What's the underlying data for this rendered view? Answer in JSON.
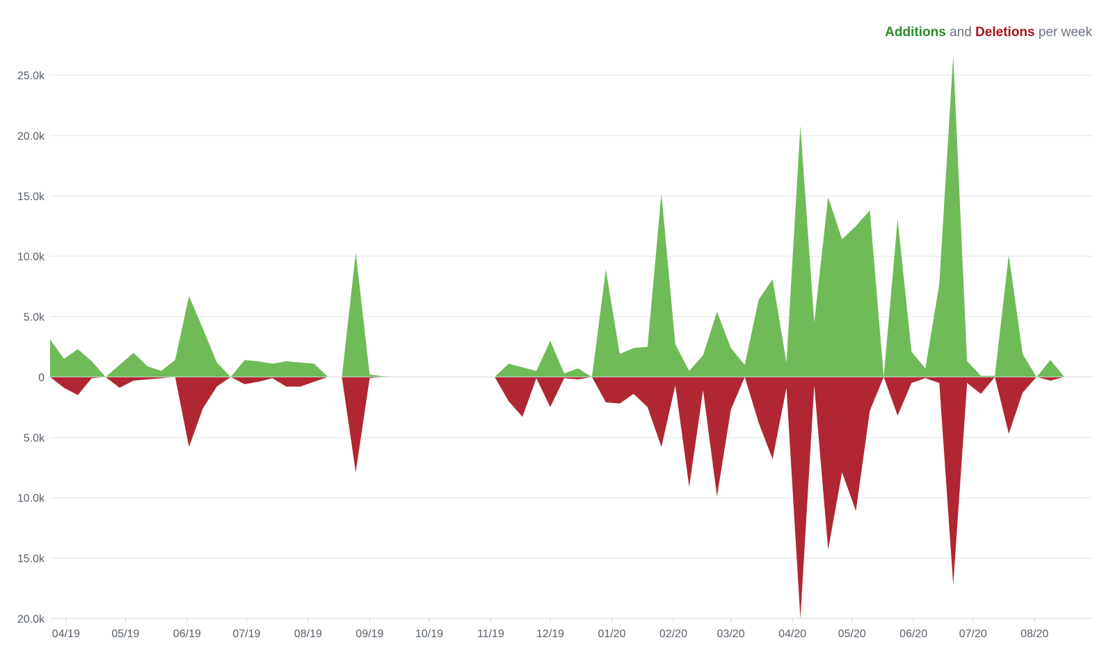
{
  "legend": {
    "additions": "Additions",
    "and": "and",
    "deletions": "Deletions",
    "suffix": "per week"
  },
  "chart_data": {
    "type": "area",
    "title": "Additions and Deletions per week",
    "colors": {
      "additions": "#6fbb57",
      "deletions": "#b02632",
      "grid": "#e1e4e8",
      "axis": "#586069"
    },
    "ylim": [
      -20000,
      26500
    ],
    "y_ticks": [
      {
        "value": 25000,
        "label": "25.0k"
      },
      {
        "value": 20000,
        "label": "20.0k"
      },
      {
        "value": 15000,
        "label": "15.0k"
      },
      {
        "value": 10000,
        "label": "10.0k"
      },
      {
        "value": 5000,
        "label": "5.0k"
      },
      {
        "value": 0,
        "label": "0"
      },
      {
        "value": -5000,
        "label": "5.0k"
      },
      {
        "value": -10000,
        "label": "10.0k"
      },
      {
        "value": -15000,
        "label": "15.0k"
      },
      {
        "value": -20000,
        "label": "20.0k"
      }
    ],
    "x_range": [
      "2019-03-24",
      "2020-08-30"
    ],
    "x_ticks": [
      {
        "date": "2019-04-01",
        "label": "04/19"
      },
      {
        "date": "2019-05-01",
        "label": "05/19"
      },
      {
        "date": "2019-06-01",
        "label": "06/19"
      },
      {
        "date": "2019-07-01",
        "label": "07/19"
      },
      {
        "date": "2019-08-01",
        "label": "08/19"
      },
      {
        "date": "2019-09-01",
        "label": "09/19"
      },
      {
        "date": "2019-10-01",
        "label": "10/19"
      },
      {
        "date": "2019-11-01",
        "label": "11/19"
      },
      {
        "date": "2019-12-01",
        "label": "12/19"
      },
      {
        "date": "2020-01-01",
        "label": "01/20"
      },
      {
        "date": "2020-02-01",
        "label": "02/20"
      },
      {
        "date": "2020-03-01",
        "label": "03/20"
      },
      {
        "date": "2020-04-01",
        "label": "04/20"
      },
      {
        "date": "2020-05-01",
        "label": "05/20"
      },
      {
        "date": "2020-06-01",
        "label": "06/20"
      },
      {
        "date": "2020-07-01",
        "label": "07/20"
      },
      {
        "date": "2020-08-01",
        "label": "08/20"
      }
    ],
    "series": [
      {
        "name": "Additions",
        "points": [
          [
            "2019-03-24",
            3100
          ],
          [
            "2019-03-31",
            1500
          ],
          [
            "2019-04-07",
            2300
          ],
          [
            "2019-04-14",
            1300
          ],
          [
            "2019-04-21",
            0
          ],
          [
            "2019-04-28",
            1000
          ],
          [
            "2019-05-05",
            2000
          ],
          [
            "2019-05-12",
            900
          ],
          [
            "2019-05-19",
            500
          ],
          [
            "2019-05-26",
            1400
          ],
          [
            "2019-06-02",
            6700
          ],
          [
            "2019-06-09",
            4000
          ],
          [
            "2019-06-16",
            1200
          ],
          [
            "2019-06-23",
            0
          ],
          [
            "2019-06-30",
            1400
          ],
          [
            "2019-07-07",
            1300
          ],
          [
            "2019-07-14",
            1100
          ],
          [
            "2019-07-21",
            1300
          ],
          [
            "2019-07-28",
            1200
          ],
          [
            "2019-08-04",
            1100
          ],
          [
            "2019-08-11",
            0
          ],
          [
            "2019-08-18",
            0
          ],
          [
            "2019-08-25",
            10300
          ],
          [
            "2019-09-01",
            200
          ],
          [
            "2019-09-08",
            50
          ],
          [
            "2019-09-15",
            0
          ],
          [
            "2019-09-22",
            0
          ],
          [
            "2019-09-29",
            0
          ],
          [
            "2019-10-06",
            0
          ],
          [
            "2019-10-13",
            0
          ],
          [
            "2019-10-20",
            0
          ],
          [
            "2019-10-27",
            0
          ],
          [
            "2019-11-03",
            0
          ],
          [
            "2019-11-10",
            1100
          ],
          [
            "2019-11-17",
            800
          ],
          [
            "2019-11-24",
            500
          ],
          [
            "2019-12-01",
            3000
          ],
          [
            "2019-12-08",
            300
          ],
          [
            "2019-12-15",
            700
          ],
          [
            "2019-12-22",
            0
          ],
          [
            "2019-12-29",
            8900
          ],
          [
            "2020-01-05",
            1900
          ],
          [
            "2020-01-12",
            2400
          ],
          [
            "2020-01-19",
            2500
          ],
          [
            "2020-01-26",
            15200
          ],
          [
            "2020-02-02",
            2700
          ],
          [
            "2020-02-09",
            500
          ],
          [
            "2020-02-16",
            1800
          ],
          [
            "2020-02-23",
            5400
          ],
          [
            "2020-03-01",
            2400
          ],
          [
            "2020-03-08",
            1000
          ],
          [
            "2020-03-15",
            6400
          ],
          [
            "2020-03-22",
            8100
          ],
          [
            "2020-03-29",
            1200
          ],
          [
            "2020-04-05",
            20800
          ],
          [
            "2020-04-12",
            4500
          ],
          [
            "2020-04-19",
            14900
          ],
          [
            "2020-04-26",
            11400
          ],
          [
            "2020-05-03",
            12500
          ],
          [
            "2020-05-10",
            13800
          ],
          [
            "2020-05-17",
            0
          ],
          [
            "2020-05-24",
            13100
          ],
          [
            "2020-05-31",
            2100
          ],
          [
            "2020-06-07",
            700
          ],
          [
            "2020-06-14",
            7700
          ],
          [
            "2020-06-21",
            26600
          ],
          [
            "2020-06-28",
            1300
          ],
          [
            "2020-07-05",
            100
          ],
          [
            "2020-07-12",
            100
          ],
          [
            "2020-07-19",
            10100
          ],
          [
            "2020-07-26",
            1900
          ],
          [
            "2020-08-02",
            0
          ],
          [
            "2020-08-09",
            1400
          ],
          [
            "2020-08-16",
            0
          ]
        ]
      },
      {
        "name": "Deletions",
        "points": [
          [
            "2019-03-24",
            0
          ],
          [
            "2019-03-31",
            -900
          ],
          [
            "2019-04-07",
            -1500
          ],
          [
            "2019-04-14",
            -100
          ],
          [
            "2019-04-21",
            0
          ],
          [
            "2019-04-28",
            -900
          ],
          [
            "2019-05-05",
            -300
          ],
          [
            "2019-05-12",
            -200
          ],
          [
            "2019-05-19",
            -100
          ],
          [
            "2019-05-26",
            0
          ],
          [
            "2019-06-02",
            -5800
          ],
          [
            "2019-06-09",
            -2600
          ],
          [
            "2019-06-16",
            -800
          ],
          [
            "2019-06-23",
            0
          ],
          [
            "2019-06-30",
            -600
          ],
          [
            "2019-07-07",
            -400
          ],
          [
            "2019-07-14",
            -100
          ],
          [
            "2019-07-21",
            -800
          ],
          [
            "2019-07-28",
            -800
          ],
          [
            "2019-08-04",
            -400
          ],
          [
            "2019-08-11",
            0
          ],
          [
            "2019-08-18",
            0
          ],
          [
            "2019-08-25",
            -7900
          ],
          [
            "2019-09-01",
            -100
          ],
          [
            "2019-09-08",
            0
          ],
          [
            "2019-09-15",
            0
          ],
          [
            "2019-09-22",
            0
          ],
          [
            "2019-09-29",
            0
          ],
          [
            "2019-10-06",
            0
          ],
          [
            "2019-10-13",
            0
          ],
          [
            "2019-10-20",
            0
          ],
          [
            "2019-10-27",
            0
          ],
          [
            "2019-11-03",
            0
          ],
          [
            "2019-11-10",
            -2000
          ],
          [
            "2019-11-17",
            -3300
          ],
          [
            "2019-11-24",
            -100
          ],
          [
            "2019-12-01",
            -2500
          ],
          [
            "2019-12-08",
            -100
          ],
          [
            "2019-12-15",
            -200
          ],
          [
            "2019-12-22",
            0
          ],
          [
            "2019-12-29",
            -2100
          ],
          [
            "2020-01-05",
            -2200
          ],
          [
            "2020-01-12",
            -1400
          ],
          [
            "2020-01-19",
            -2500
          ],
          [
            "2020-01-26",
            -5800
          ],
          [
            "2020-02-02",
            -700
          ],
          [
            "2020-02-09",
            -9100
          ],
          [
            "2020-02-16",
            -1100
          ],
          [
            "2020-02-23",
            -9900
          ],
          [
            "2020-03-01",
            -2700
          ],
          [
            "2020-03-08",
            0
          ],
          [
            "2020-03-15",
            -3800
          ],
          [
            "2020-03-22",
            -6800
          ],
          [
            "2020-03-29",
            -900
          ],
          [
            "2020-04-05",
            -20000
          ],
          [
            "2020-04-12",
            -700
          ],
          [
            "2020-04-19",
            -14300
          ],
          [
            "2020-04-26",
            -7900
          ],
          [
            "2020-05-03",
            -11100
          ],
          [
            "2020-05-10",
            -2800
          ],
          [
            "2020-05-17",
            0
          ],
          [
            "2020-05-24",
            -3200
          ],
          [
            "2020-05-31",
            -500
          ],
          [
            "2020-06-07",
            -100
          ],
          [
            "2020-06-14",
            -500
          ],
          [
            "2020-06-21",
            -17200
          ],
          [
            "2020-06-28",
            -500
          ],
          [
            "2020-07-05",
            -1400
          ],
          [
            "2020-07-12",
            0
          ],
          [
            "2020-07-19",
            -4700
          ],
          [
            "2020-07-26",
            -1300
          ],
          [
            "2020-08-02",
            0
          ],
          [
            "2020-08-09",
            -300
          ],
          [
            "2020-08-16",
            0
          ]
        ]
      }
    ]
  }
}
